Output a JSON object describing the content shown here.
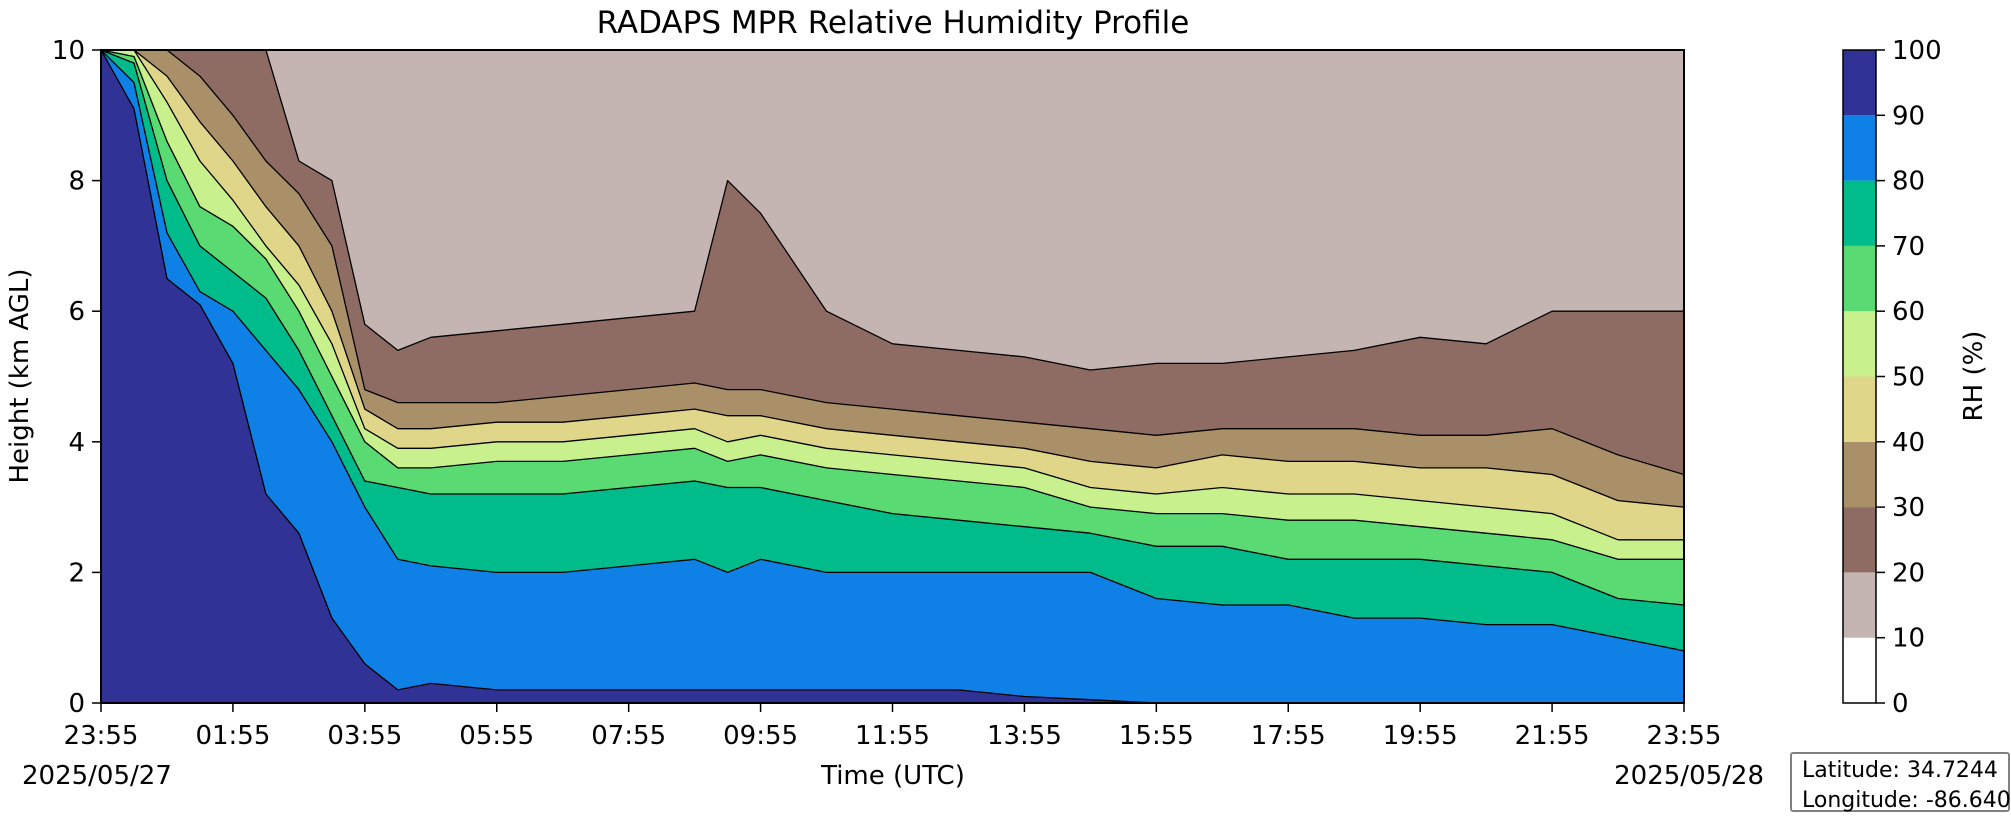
{
  "chart_data": {
    "type": "heatmap",
    "title": "RADAPS MPR Relative Humidity Profile",
    "xlabel": "Time (UTC)",
    "ylabel": "Height (km AGL)",
    "x_tick_labels": [
      "23:55",
      "01:55",
      "03:55",
      "05:55",
      "07:55",
      "09:55",
      "11:55",
      "13:55",
      "15:55",
      "17:55",
      "19:55",
      "21:55",
      "23:55"
    ],
    "x_range_hours": [
      0,
      24
    ],
    "start_date": "2025/05/27",
    "end_date": "2025/05/28",
    "ylim": [
      0,
      10
    ],
    "y_ticks": [
      0,
      2,
      4,
      6,
      8,
      10
    ],
    "colorbar": {
      "label": "RH (%)",
      "levels": [
        0,
        10,
        20,
        30,
        40,
        50,
        60,
        70,
        80,
        90,
        100
      ],
      "colors": [
        "#ffffff",
        "#c4b4b2",
        "#8e6c64",
        "#aa9068",
        "#e0d68a",
        "#c8f08c",
        "#5ada72",
        "#00bc8a",
        "#0f80e6",
        "#303296"
      ]
    },
    "contour_boundaries_km": {
      "hours": [
        0,
        0.5,
        1,
        1.5,
        2,
        2.5,
        3,
        3.5,
        4,
        4.5,
        5,
        6,
        7,
        8,
        9,
        9.5,
        10,
        11,
        12,
        13,
        14,
        15,
        16,
        17,
        18,
        19,
        20,
        21,
        22,
        23,
        24
      ],
      "rh_90": [
        10,
        9.1,
        6.5,
        6.1,
        5.2,
        3.2,
        2.6,
        1.3,
        0.6,
        0.2,
        0.3,
        0.2,
        0.2,
        0.2,
        0.2,
        0.2,
        0.2,
        0.2,
        0.2,
        0.2,
        0.1,
        0.05,
        0.0,
        0.0,
        0.0,
        0.0,
        0.0,
        0.0,
        0.0,
        0.0,
        0.0
      ],
      "rh_80": [
        10,
        9.5,
        7.2,
        6.3,
        6.0,
        5.4,
        4.8,
        4.0,
        3.0,
        2.2,
        2.1,
        2.0,
        2.0,
        2.1,
        2.2,
        2.0,
        2.2,
        2.0,
        2.0,
        2.0,
        2.0,
        2.0,
        1.6,
        1.5,
        1.5,
        1.3,
        1.3,
        1.2,
        1.2,
        1.0,
        0.8
      ],
      "rh_70": [
        10,
        9.8,
        8.0,
        7.0,
        6.6,
        6.2,
        5.4,
        4.4,
        3.4,
        3.3,
        3.2,
        3.2,
        3.2,
        3.3,
        3.4,
        3.3,
        3.3,
        3.1,
        2.9,
        2.8,
        2.7,
        2.6,
        2.4,
        2.4,
        2.2,
        2.2,
        2.2,
        2.1,
        2.0,
        1.6,
        1.5
      ],
      "rh_60": [
        10,
        9.9,
        8.6,
        7.6,
        7.3,
        6.8,
        6.0,
        5.0,
        4.0,
        3.6,
        3.6,
        3.7,
        3.7,
        3.8,
        3.9,
        3.7,
        3.8,
        3.6,
        3.5,
        3.4,
        3.3,
        3.0,
        2.9,
        2.9,
        2.8,
        2.8,
        2.7,
        2.6,
        2.5,
        2.2,
        2.2
      ],
      "rh_50": [
        10,
        10,
        9.2,
        8.3,
        7.7,
        7.0,
        6.4,
        5.5,
        4.2,
        3.9,
        3.9,
        4.0,
        4.0,
        4.1,
        4.2,
        4.0,
        4.1,
        3.9,
        3.8,
        3.7,
        3.6,
        3.3,
        3.2,
        3.3,
        3.2,
        3.2,
        3.1,
        3.0,
        2.9,
        2.5,
        2.5
      ],
      "rh_40": [
        10,
        10,
        9.6,
        8.9,
        8.3,
        7.6,
        7.0,
        6.0,
        4.5,
        4.2,
        4.2,
        4.3,
        4.3,
        4.4,
        4.5,
        4.4,
        4.4,
        4.2,
        4.1,
        4.0,
        3.9,
        3.7,
        3.6,
        3.8,
        3.7,
        3.7,
        3.6,
        3.6,
        3.5,
        3.1,
        3.0
      ],
      "rh_30": [
        10,
        10,
        10,
        9.6,
        9.0,
        8.3,
        7.8,
        7.0,
        4.8,
        4.6,
        4.6,
        4.6,
        4.7,
        4.8,
        4.9,
        4.8,
        4.8,
        4.6,
        4.5,
        4.4,
        4.3,
        4.2,
        4.1,
        4.2,
        4.2,
        4.2,
        4.1,
        4.1,
        4.2,
        3.8,
        3.5
      ],
      "rh_20": [
        10,
        10,
        10,
        10,
        10,
        10,
        8.3,
        8.0,
        5.8,
        5.4,
        5.6,
        5.7,
        5.8,
        5.9,
        6.0,
        8.0,
        7.5,
        6.0,
        5.5,
        5.4,
        5.3,
        5.1,
        5.2,
        5.2,
        5.3,
        5.4,
        5.6,
        5.5,
        6.0,
        6.0,
        6.0
      ]
    }
  },
  "info_box": {
    "latitude_label": "Latitude: 34.7244",
    "longitude_label": "Longitude: -86.640"
  }
}
